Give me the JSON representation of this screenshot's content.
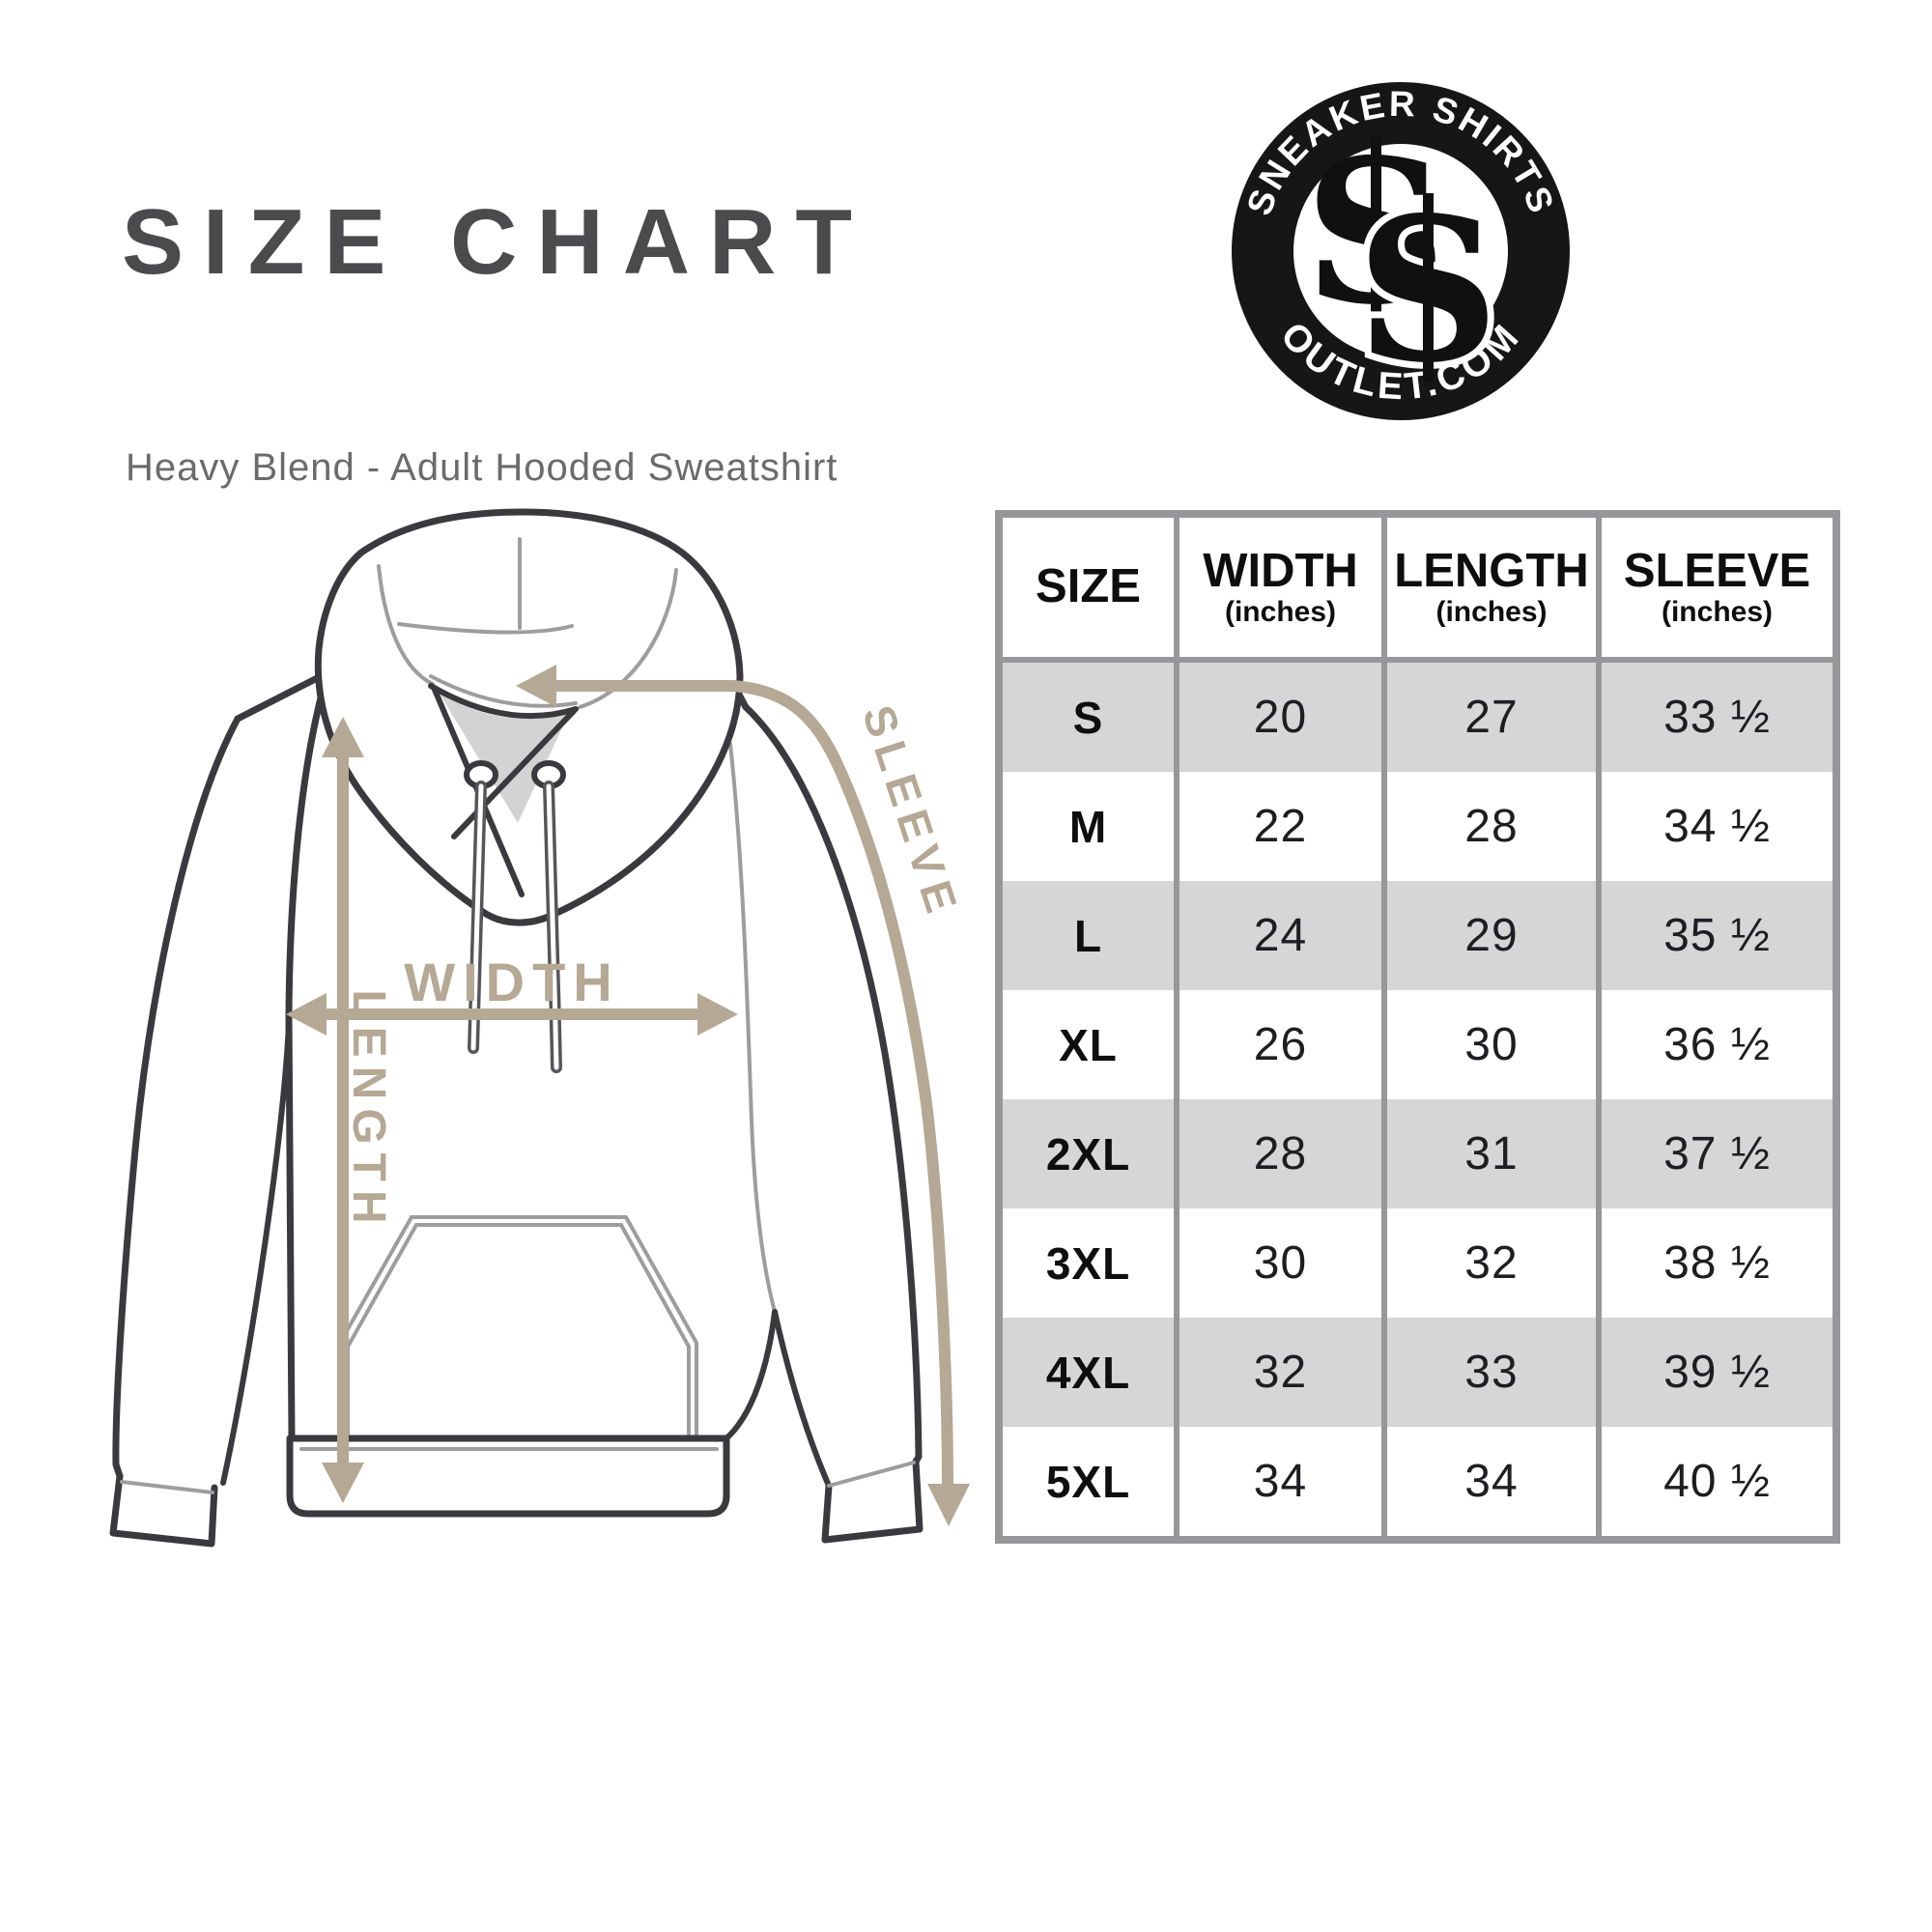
{
  "header": {
    "title": "SIZE CHART",
    "subtitle": "Heavy Blend - Adult Hooded Sweatshirt"
  },
  "logo": {
    "top_text": "SNEAKER SHIRTS",
    "bottom_text": "OUTLET.COM",
    "monogram_letter_1": "S",
    "monogram_letter_2": "S"
  },
  "diagram": {
    "labels": {
      "width": "WIDTH",
      "length": "LENGTH",
      "sleeve": "SLEEVE"
    }
  },
  "table": {
    "columns": [
      {
        "label": "SIZE",
        "unit": ""
      },
      {
        "label": "WIDTH",
        "unit": "(inches)"
      },
      {
        "label": "LENGTH",
        "unit": "(inches)"
      },
      {
        "label": "SLEEVE",
        "unit": "(inches)"
      }
    ],
    "rows": [
      {
        "size": "S",
        "width": "20",
        "length": "27",
        "sleeve": "33 ½"
      },
      {
        "size": "M",
        "width": "22",
        "length": "28",
        "sleeve": "34 ½"
      },
      {
        "size": "L",
        "width": "24",
        "length": "29",
        "sleeve": "35 ½"
      },
      {
        "size": "XL",
        "width": "26",
        "length": "30",
        "sleeve": "36 ½"
      },
      {
        "size": "2XL",
        "width": "28",
        "length": "31",
        "sleeve": "37 ½"
      },
      {
        "size": "3XL",
        "width": "30",
        "length": "32",
        "sleeve": "38 ½"
      },
      {
        "size": "4XL",
        "width": "32",
        "length": "33",
        "sleeve": "39 ½"
      },
      {
        "size": "5XL",
        "width": "34",
        "length": "34",
        "sleeve": "40 ½"
      }
    ]
  },
  "colors": {
    "tan": "#b5a894",
    "line_dark": "#3a3a3e",
    "line_light": "#9d9d9d",
    "shade": "#d3d3d3",
    "table_border": "#97979a",
    "row_alt": "#d6d6d6",
    "title": "#4b4b4d",
    "subtitle": "#6b6b6d",
    "text": "#1e1e22"
  }
}
